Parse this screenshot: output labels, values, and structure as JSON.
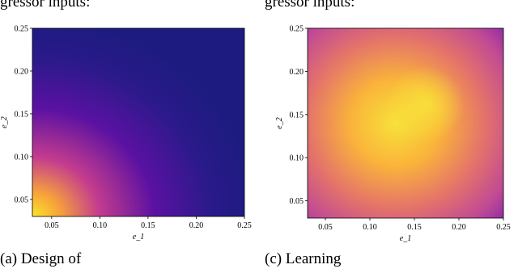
{
  "top_texts": [
    "gressor inputs:",
    "gressor inputs:"
  ],
  "captions": [
    "(a) Design of",
    "(c) Learning"
  ],
  "chart_data": [
    {
      "type": "contour",
      "xlabel": "e_1",
      "ylabel": "e_2",
      "xlim": [
        0.03,
        0.25
      ],
      "ylim": [
        0.03,
        0.25
      ],
      "xticks": [
        0.05,
        {
          "value": 0.1,
          "label": "0.10"
        },
        0.15,
        {
          "value": 0.2,
          "label": "0.20"
        },
        0.25
      ],
      "yticks": [
        0.05,
        {
          "value": 0.1,
          "label": "0.10"
        },
        0.15,
        {
          "value": 0.2,
          "label": "0.20"
        },
        0.25
      ]
    },
    {
      "type": "contour",
      "xlabel": "e_1",
      "ylabel": "e_2",
      "xlim": [
        0.03,
        0.25
      ],
      "ylim": [
        0.03,
        0.25
      ],
      "xticks": [
        0.05,
        {
          "value": 0.1,
          "label": "0.10"
        },
        0.15,
        {
          "value": 0.2,
          "label": "0.20"
        },
        0.25
      ],
      "yticks": [
        0.05,
        {
          "value": 0.1,
          "label": "0.10"
        },
        0.15,
        {
          "value": 0.2,
          "label": "0.20"
        },
        0.25
      ]
    }
  ]
}
